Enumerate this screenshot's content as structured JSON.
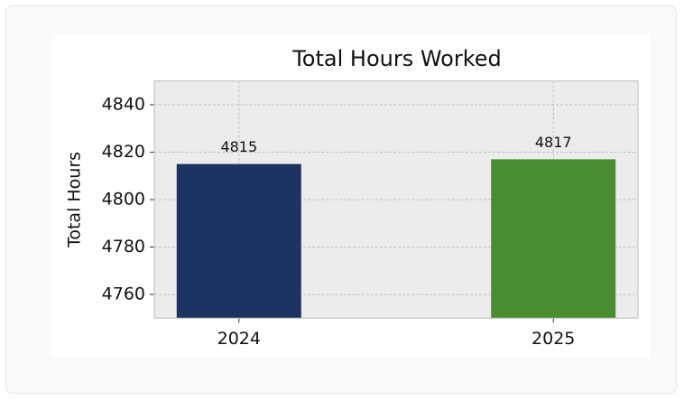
{
  "chart_data": {
    "type": "bar",
    "title": "Total Hours Worked",
    "ylabel": "Total Hours",
    "categories": [
      "2024",
      "2025"
    ],
    "values": [
      4815,
      4817
    ],
    "colors": [
      "#1d3461",
      "#4a8c32"
    ],
    "ylim": [
      4750,
      4850
    ],
    "yticks": [
      4760,
      4780,
      4800,
      4820,
      4840
    ],
    "grid": true
  }
}
